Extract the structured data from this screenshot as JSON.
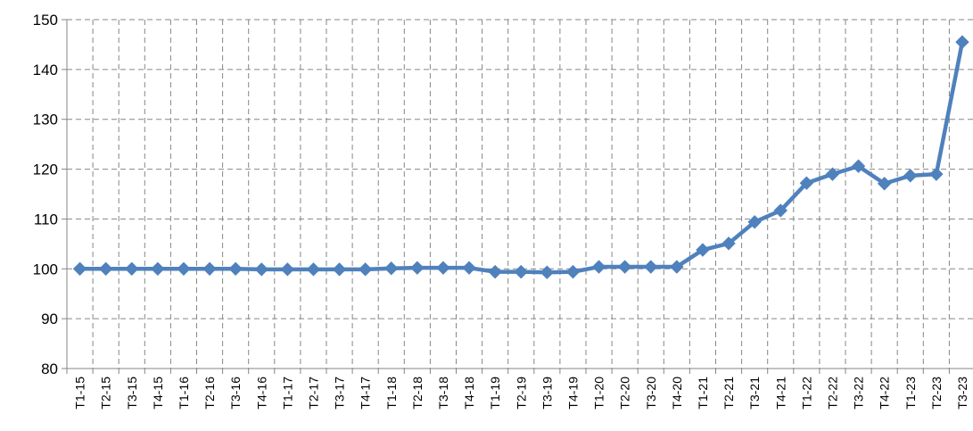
{
  "chart_data": {
    "type": "line",
    "title": "",
    "xlabel": "",
    "ylabel": "",
    "ylim": [
      80,
      150
    ],
    "yticks": [
      80,
      90,
      100,
      110,
      120,
      130,
      140,
      150
    ],
    "grid": true,
    "legend": "none",
    "categories": [
      "T1-15",
      "T2-15",
      "T3-15",
      "T4-15",
      "T1-16",
      "T2-16",
      "T3-16",
      "T4-16",
      "T1-17",
      "T2-17",
      "T3-17",
      "T4-17",
      "T1-18",
      "T2-18",
      "T3-18",
      "T4-18",
      "T1-19",
      "T2-19",
      "T3-19",
      "T4-19",
      "T1-20",
      "T2-20",
      "T3-20",
      "T4-20",
      "T1-21",
      "T2-21",
      "T3-21",
      "T4-21",
      "T1-22",
      "T2-22",
      "T3-22",
      "T4-22",
      "T1-23",
      "T2-23",
      "T3-23"
    ],
    "series": [
      {
        "color": "#4F81BD",
        "values": [
          100.0,
          100.0,
          100.0,
          100.0,
          100.0,
          100.0,
          100.0,
          99.9,
          99.9,
          99.9,
          99.9,
          99.9,
          100.1,
          100.2,
          100.2,
          100.2,
          99.4,
          99.4,
          99.3,
          99.4,
          100.4,
          100.4,
          100.4,
          100.4,
          103.8,
          105.1,
          109.4,
          111.7,
          117.2,
          119.0,
          120.6,
          117.1,
          118.7,
          119.0,
          145.5
        ]
      }
    ]
  }
}
